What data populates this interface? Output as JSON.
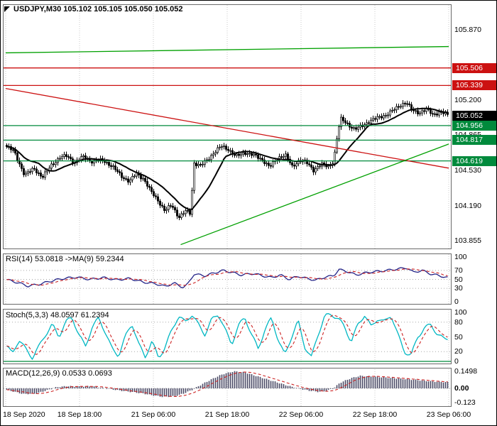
{
  "header": {
    "title": "USDJPY,M30 105.102 105.105 105.050 105.052"
  },
  "colors": {
    "background": "#ffffff",
    "border": "#6a6a6a",
    "grid": "#c8c8c8",
    "level_dotted": "#a8a8a8",
    "candle": "#000000",
    "resistance_red": "#cc1111",
    "support_green": "#008a3c",
    "trend_green": "#00a000",
    "current_price_badge": "#000000"
  },
  "time_axis": {
    "labels": [
      "18 Sep 2020",
      "18 Sep 18:00",
      "21 Sep 06:00",
      "21 Sep 18:00",
      "22 Sep 06:00",
      "22 Sep 18:00",
      "23 Sep 06:00"
    ]
  },
  "chart_data": [
    {
      "id": "price",
      "type": "candlestick",
      "symbol": "USDJPY",
      "timeframe": "M30",
      "title": "USDJPY,M30 105.102 105.105 105.050 105.052",
      "ohlc": {
        "open": 105.102,
        "high": 105.105,
        "low": 105.05,
        "close": 105.052
      },
      "ylim": [
        103.79,
        106.1
      ],
      "y_ticks": [
        {
          "label": "105.870",
          "value": 105.87
        },
        {
          "label": "105.200",
          "value": 105.2
        },
        {
          "label": "104.865",
          "value": 104.865
        },
        {
          "label": "104.530",
          "value": 104.53
        },
        {
          "label": "104.190",
          "value": 104.19
        },
        {
          "label": "103.855",
          "value": 103.855
        }
      ],
      "price_lines": [
        {
          "label": "105.506",
          "value": 105.506,
          "color": "#cc1111",
          "line": true
        },
        {
          "label": "105.339",
          "value": 105.339,
          "color": "#cc1111",
          "line": true
        },
        {
          "label": "105.052",
          "value": 105.052,
          "color": "#000000",
          "line": false
        },
        {
          "label": "104.956",
          "value": 104.956,
          "color": "#008a3c",
          "line": true
        },
        {
          "label": "104.817",
          "value": 104.817,
          "color": "#008a3c",
          "line": true
        },
        {
          "label": "104.619",
          "value": 104.619,
          "color": "#008a3c",
          "line": true
        }
      ],
      "trend_lines": [
        {
          "f1": 0.0,
          "p1": 105.65,
          "f2": 1.0,
          "p2": 105.71,
          "color": "#00a000"
        },
        {
          "f1": 0.0,
          "p1": 105.31,
          "f2": 1.0,
          "p2": 104.55,
          "color": "#cc1111"
        },
        {
          "f1": 0.395,
          "p1": 103.82,
          "f2": 1.0,
          "p2": 104.78,
          "color": "#00a000"
        }
      ],
      "candle_count": 208,
      "close_anchors": [
        [
          0.0,
          104.76
        ],
        [
          0.019,
          104.71
        ],
        [
          0.043,
          104.48
        ],
        [
          0.064,
          104.55
        ],
        [
          0.083,
          104.46
        ],
        [
          0.103,
          104.58
        ],
        [
          0.123,
          104.65
        ],
        [
          0.139,
          104.67
        ],
        [
          0.155,
          104.6
        ],
        [
          0.176,
          104.66
        ],
        [
          0.196,
          104.61
        ],
        [
          0.22,
          104.63
        ],
        [
          0.244,
          104.55
        ],
        [
          0.263,
          104.47
        ],
        [
          0.279,
          104.42
        ],
        [
          0.295,
          104.5
        ],
        [
          0.311,
          104.45
        ],
        [
          0.327,
          104.33
        ],
        [
          0.343,
          104.25
        ],
        [
          0.359,
          104.14
        ],
        [
          0.375,
          104.2
        ],
        [
          0.391,
          104.08
        ],
        [
          0.407,
          104.14
        ],
        [
          0.417,
          104.12
        ],
        [
          0.425,
          104.6
        ],
        [
          0.439,
          104.57
        ],
        [
          0.455,
          104.63
        ],
        [
          0.471,
          104.7
        ],
        [
          0.487,
          104.76
        ],
        [
          0.503,
          104.73
        ],
        [
          0.519,
          104.66
        ],
        [
          0.54,
          104.7
        ],
        [
          0.561,
          104.67
        ],
        [
          0.58,
          104.63
        ],
        [
          0.596,
          104.56
        ],
        [
          0.615,
          104.65
        ],
        [
          0.631,
          104.68
        ],
        [
          0.647,
          104.56
        ],
        [
          0.663,
          104.63
        ],
        [
          0.679,
          104.6
        ],
        [
          0.695,
          104.53
        ],
        [
          0.712,
          104.59
        ],
        [
          0.728,
          104.56
        ],
        [
          0.74,
          104.62
        ],
        [
          0.75,
          104.9
        ],
        [
          0.756,
          105.02
        ],
        [
          0.772,
          104.97
        ],
        [
          0.788,
          104.92
        ],
        [
          0.804,
          104.95
        ],
        [
          0.821,
          105.0
        ],
        [
          0.84,
          105.03
        ],
        [
          0.859,
          105.06
        ],
        [
          0.878,
          105.11
        ],
        [
          0.894,
          105.16
        ],
        [
          0.904,
          105.18
        ],
        [
          0.917,
          105.1
        ],
        [
          0.933,
          105.08
        ],
        [
          0.949,
          105.11
        ],
        [
          0.965,
          105.06
        ],
        [
          0.981,
          105.09
        ],
        [
          1.0,
          105.05
        ]
      ]
    },
    {
      "id": "rsi",
      "type": "line",
      "title": "RSI(14) 53.0818 ->MA(9) 59.2344",
      "value": 53.0818,
      "ma_value": 59.2344,
      "line_color": "#242488",
      "ma_color": "#cc2222",
      "ticks": [
        {
          "label": "100",
          "value": 100
        },
        {
          "label": "70",
          "value": 70
        },
        {
          "label": "50",
          "value": 50
        },
        {
          "label": "30",
          "value": 30
        },
        {
          "label": "0",
          "value": 0
        }
      ],
      "levels": [
        70,
        50,
        30
      ],
      "anchors": [
        [
          0.0,
          50
        ],
        [
          0.03,
          42
        ],
        [
          0.05,
          35
        ],
        [
          0.08,
          40
        ],
        [
          0.1,
          46
        ],
        [
          0.13,
          52
        ],
        [
          0.16,
          55
        ],
        [
          0.19,
          50
        ],
        [
          0.22,
          54
        ],
        [
          0.25,
          49
        ],
        [
          0.28,
          52
        ],
        [
          0.31,
          44
        ],
        [
          0.34,
          40
        ],
        [
          0.36,
          34
        ],
        [
          0.38,
          42
        ],
        [
          0.4,
          32
        ],
        [
          0.41,
          38
        ],
        [
          0.425,
          62
        ],
        [
          0.45,
          58
        ],
        [
          0.47,
          64
        ],
        [
          0.49,
          70
        ],
        [
          0.51,
          66
        ],
        [
          0.53,
          60
        ],
        [
          0.56,
          63
        ],
        [
          0.58,
          58
        ],
        [
          0.6,
          54
        ],
        [
          0.62,
          60
        ],
        [
          0.64,
          50
        ],
        [
          0.66,
          57
        ],
        [
          0.68,
          52
        ],
        [
          0.7,
          48
        ],
        [
          0.72,
          55
        ],
        [
          0.74,
          58
        ],
        [
          0.752,
          72
        ],
        [
          0.77,
          68
        ],
        [
          0.79,
          60
        ],
        [
          0.82,
          66
        ],
        [
          0.86,
          70
        ],
        [
          0.89,
          74
        ],
        [
          0.905,
          76
        ],
        [
          0.92,
          66
        ],
        [
          0.94,
          70
        ],
        [
          0.96,
          62
        ],
        [
          0.98,
          58
        ],
        [
          1.0,
          53
        ]
      ]
    },
    {
      "id": "stochastic",
      "type": "line",
      "title": "Stoch(5,3,3) 48.0597 61.2394",
      "value": 48.0597,
      "signal_value": 61.2394,
      "line_color": "#00b7c3",
      "signal_color": "#cc2222",
      "zero_line_color": "#008a3c",
      "ticks": [
        {
          "label": "100",
          "value": 100
        },
        {
          "label": "80",
          "value": 80
        },
        {
          "label": "50",
          "value": 50
        },
        {
          "label": "20",
          "value": 20
        },
        {
          "label": "0",
          "value": 0
        }
      ],
      "levels": [
        80,
        20
      ],
      "anchors": [
        [
          0.0,
          35
        ],
        [
          0.015,
          15
        ],
        [
          0.03,
          45
        ],
        [
          0.045,
          25
        ],
        [
          0.06,
          8
        ],
        [
          0.075,
          30
        ],
        [
          0.09,
          55
        ],
        [
          0.105,
          75
        ],
        [
          0.12,
          50
        ],
        [
          0.135,
          80
        ],
        [
          0.15,
          90
        ],
        [
          0.165,
          55
        ],
        [
          0.18,
          30
        ],
        [
          0.195,
          70
        ],
        [
          0.21,
          88
        ],
        [
          0.225,
          60
        ],
        [
          0.24,
          25
        ],
        [
          0.255,
          12
        ],
        [
          0.27,
          50
        ],
        [
          0.285,
          78
        ],
        [
          0.3,
          35
        ],
        [
          0.315,
          10
        ],
        [
          0.33,
          40
        ],
        [
          0.345,
          8
        ],
        [
          0.36,
          28
        ],
        [
          0.375,
          65
        ],
        [
          0.39,
          92
        ],
        [
          0.405,
          80
        ],
        [
          0.42,
          96
        ],
        [
          0.435,
          75
        ],
        [
          0.45,
          55
        ],
        [
          0.465,
          85
        ],
        [
          0.48,
          97
        ],
        [
          0.495,
          65
        ],
        [
          0.51,
          35
        ],
        [
          0.525,
          72
        ],
        [
          0.54,
          90
        ],
        [
          0.555,
          55
        ],
        [
          0.57,
          25
        ],
        [
          0.585,
          65
        ],
        [
          0.6,
          88
        ],
        [
          0.615,
          45
        ],
        [
          0.63,
          12
        ],
        [
          0.645,
          50
        ],
        [
          0.66,
          82
        ],
        [
          0.675,
          30
        ],
        [
          0.69,
          8
        ],
        [
          0.705,
          55
        ],
        [
          0.72,
          92
        ],
        [
          0.735,
          96
        ],
        [
          0.75,
          88
        ],
        [
          0.765,
          70
        ],
        [
          0.78,
          40
        ],
        [
          0.795,
          75
        ],
        [
          0.81,
          95
        ],
        [
          0.825,
          70
        ],
        [
          0.84,
          88
        ],
        [
          0.855,
          80
        ],
        [
          0.87,
          95
        ],
        [
          0.885,
          55
        ],
        [
          0.9,
          20
        ],
        [
          0.915,
          12
        ],
        [
          0.93,
          50
        ],
        [
          0.945,
          68
        ],
        [
          0.96,
          75
        ],
        [
          0.975,
          55
        ],
        [
          0.99,
          45
        ],
        [
          1.0,
          48
        ]
      ]
    },
    {
      "id": "macd",
      "type": "bar",
      "title": "MACD(12,26,9) 0.0533 0.0693",
      "value": 0.0533,
      "signal_value": 0.0693,
      "bar_color": "#4a4a66",
      "signal_color": "#cc2222",
      "ticks": [
        {
          "label": "0.1498",
          "value": 0.1498
        },
        {
          "label": "0.00",
          "value": 0,
          "bold": true
        },
        {
          "label": "-0.123",
          "value": -0.123
        }
      ],
      "anchors": [
        [
          0.0,
          -0.01
        ],
        [
          0.02,
          -0.03
        ],
        [
          0.04,
          -0.05
        ],
        [
          0.07,
          -0.045
        ],
        [
          0.09,
          -0.02
        ],
        [
          0.115,
          0.01
        ],
        [
          0.14,
          0.02
        ],
        [
          0.165,
          0.015
        ],
        [
          0.19,
          0.02
        ],
        [
          0.21,
          0.008
        ],
        [
          0.235,
          -0.005
        ],
        [
          0.26,
          -0.02
        ],
        [
          0.285,
          -0.032
        ],
        [
          0.31,
          -0.045
        ],
        [
          0.33,
          -0.06
        ],
        [
          0.355,
          -0.075
        ],
        [
          0.38,
          -0.07
        ],
        [
          0.4,
          -0.048
        ],
        [
          0.42,
          -0.015
        ],
        [
          0.445,
          0.04
        ],
        [
          0.47,
          0.09
        ],
        [
          0.49,
          0.125
        ],
        [
          0.515,
          0.15
        ],
        [
          0.54,
          0.14
        ],
        [
          0.565,
          0.11
        ],
        [
          0.59,
          0.08
        ],
        [
          0.615,
          0.05
        ],
        [
          0.64,
          0.02
        ],
        [
          0.66,
          0.0
        ],
        [
          0.685,
          -0.02
        ],
        [
          0.705,
          -0.03
        ],
        [
          0.72,
          -0.025
        ],
        [
          0.74,
          0.0
        ],
        [
          0.755,
          0.05
        ],
        [
          0.78,
          0.09
        ],
        [
          0.8,
          0.11
        ],
        [
          0.825,
          0.105
        ],
        [
          0.85,
          0.098
        ],
        [
          0.875,
          0.09
        ],
        [
          0.9,
          0.082
        ],
        [
          0.925,
          0.075
        ],
        [
          0.95,
          0.065
        ],
        [
          0.975,
          0.058
        ],
        [
          1.0,
          0.053
        ]
      ]
    }
  ]
}
